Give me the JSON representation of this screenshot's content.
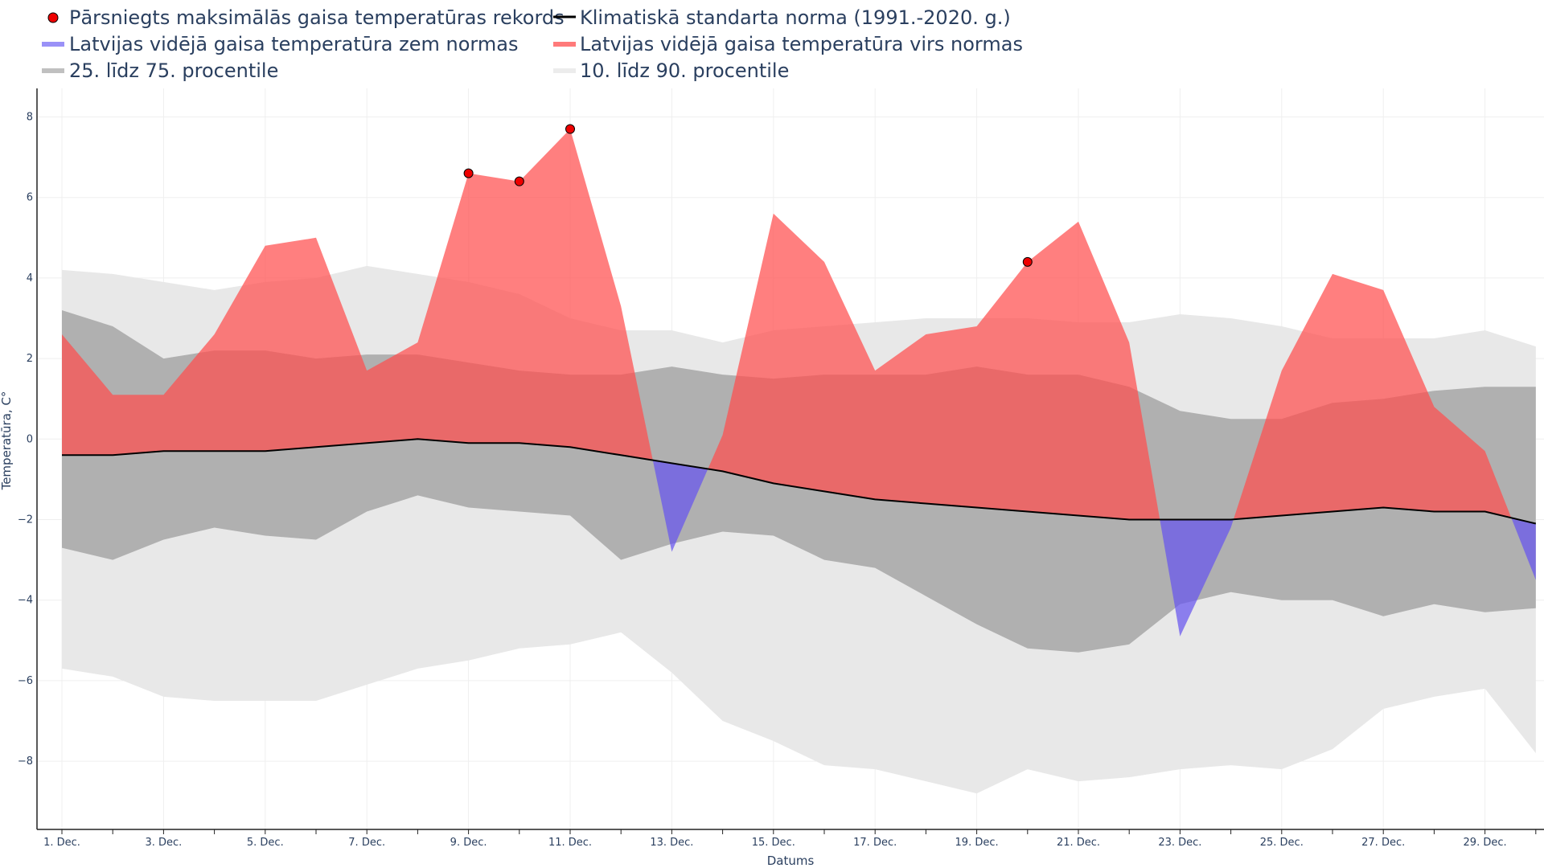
{
  "colors": {
    "above": "#ff4d4d",
    "below": "#6655ee",
    "p25_75": "#b0b0b0",
    "p10_90": "#e8e8e8",
    "norm": "#000000",
    "record": "#ee0000",
    "grid": "#efefef",
    "text": "#2a3f5f"
  },
  "chart_data": {
    "type": "area",
    "xlabel": "Datums",
    "ylabel": "Temperatūra, C°",
    "ylim": [
      -9.7,
      8.7
    ],
    "y_ticks": [
      -8,
      -6,
      -4,
      -2,
      0,
      2,
      4,
      6,
      8
    ],
    "x_ticklabels": [
      "1. Dec.",
      "3. Dec.",
      "5. Dec.",
      "7. Dec.",
      "9. Dec.",
      "11. Dec.",
      "13. Dec.",
      "15. Dec.",
      "17. Dec.",
      "19. Dec.",
      "21. Dec.",
      "23. Dec.",
      "25. Dec.",
      "27. Dec.",
      "29. Dec."
    ],
    "x_days": [
      1,
      2,
      3,
      4,
      5,
      6,
      7,
      8,
      9,
      10,
      11,
      12,
      13,
      14,
      15,
      16,
      17,
      18,
      19,
      20,
      21,
      22,
      23,
      24,
      25,
      26,
      27,
      28,
      29,
      30
    ],
    "legend": {
      "record": "Pārsniegts maksimālās gaisa temperatūras rekords",
      "norm": "Klimatiskā standarta norma (1991.-2020. g.)",
      "below": "Latvijas vidējā gaisa temperatūra zem normas",
      "above": "Latvijas vidējā gaisa temperatūra virs normas",
      "p25_75": "25. līdz 75. procentile",
      "p10_90": "10. līdz 90. procentile"
    },
    "series": [
      {
        "name": "Latvijas vidējā gaisa temperatūra",
        "values": [
          2.6,
          1.1,
          1.1,
          2.6,
          4.8,
          5.0,
          1.7,
          2.4,
          6.6,
          6.4,
          7.7,
          3.3,
          -2.8,
          0.1,
          5.6,
          4.4,
          1.7,
          2.6,
          2.8,
          4.4,
          5.4,
          2.4,
          -4.9,
          -2.2,
          1.7,
          4.1,
          3.7,
          0.8,
          -0.3,
          -3.5
        ]
      },
      {
        "name": "Klimatiskā standarta norma (1991.-2020. g.)",
        "values": [
          -0.4,
          -0.4,
          -0.3,
          -0.3,
          -0.3,
          -0.2,
          -0.1,
          0.0,
          -0.1,
          -0.1,
          -0.2,
          -0.4,
          -0.6,
          -0.8,
          -1.1,
          -1.3,
          -1.5,
          -1.6,
          -1.7,
          -1.8,
          -1.9,
          -2.0,
          -2.0,
          -2.0,
          -1.9,
          -1.8,
          -1.7,
          -1.8,
          -1.8,
          -2.1
        ]
      },
      {
        "name": "75. procentile",
        "values": [
          3.2,
          2.8,
          2.0,
          2.2,
          2.2,
          2.0,
          2.1,
          2.1,
          1.9,
          1.7,
          1.6,
          1.6,
          1.8,
          1.6,
          1.5,
          1.6,
          1.6,
          1.6,
          1.8,
          1.6,
          1.6,
          1.3,
          0.7,
          0.5,
          0.5,
          0.9,
          1.0,
          1.2,
          1.3,
          1.3
        ]
      },
      {
        "name": "25. procentile",
        "values": [
          -2.7,
          -3.0,
          -2.5,
          -2.2,
          -2.4,
          -2.5,
          -1.8,
          -1.4,
          -1.7,
          -1.8,
          -1.9,
          -3.0,
          -2.6,
          -2.3,
          -2.4,
          -3.0,
          -3.2,
          -3.9,
          -4.6,
          -5.2,
          -5.3,
          -5.1,
          -4.1,
          -3.8,
          -4.0,
          -4.0,
          -4.4,
          -4.1,
          -4.3,
          -4.2
        ]
      },
      {
        "name": "90. procentile",
        "values": [
          4.2,
          4.1,
          3.9,
          3.7,
          3.9,
          4.0,
          4.3,
          4.1,
          3.9,
          3.6,
          3.0,
          2.7,
          2.7,
          2.4,
          2.7,
          2.8,
          2.9,
          3.0,
          3.0,
          3.0,
          2.9,
          2.9,
          3.1,
          3.0,
          2.8,
          2.5,
          2.5,
          2.5,
          2.7,
          2.3
        ]
      },
      {
        "name": "10. procentile",
        "values": [
          -5.7,
          -5.9,
          -6.4,
          -6.5,
          -6.5,
          -6.5,
          -6.1,
          -5.7,
          -5.5,
          -5.2,
          -5.1,
          -4.8,
          -5.8,
          -7.0,
          -7.5,
          -8.1,
          -8.2,
          -8.5,
          -8.8,
          -8.2,
          -8.5,
          -8.4,
          -8.2,
          -8.1,
          -8.2,
          -7.7,
          -6.7,
          -6.4,
          -6.2,
          -7.8
        ]
      }
    ],
    "record_days": [
      9,
      10,
      11,
      20
    ],
    "record_values": [
      6.6,
      6.4,
      7.7,
      4.4
    ]
  }
}
